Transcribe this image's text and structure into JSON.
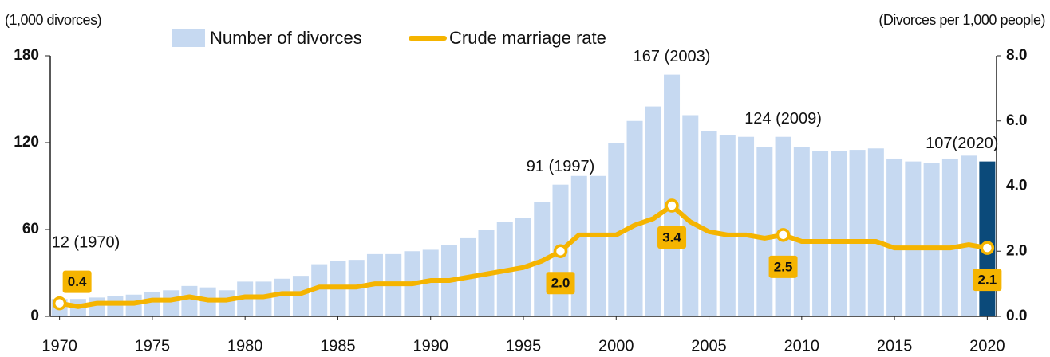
{
  "chart_data": {
    "type": "bar+line",
    "y_label": "(1,000 divorces)",
    "y2_label": "(Divorces per 1,000 people)",
    "x": [
      1970,
      1971,
      1972,
      1973,
      1974,
      1975,
      1976,
      1977,
      1978,
      1979,
      1980,
      1981,
      1982,
      1983,
      1984,
      1985,
      1986,
      1987,
      1988,
      1989,
      1990,
      1991,
      1992,
      1993,
      1994,
      1995,
      1996,
      1997,
      1998,
      1999,
      2000,
      2001,
      2002,
      2003,
      2004,
      2005,
      2006,
      2007,
      2008,
      2009,
      2010,
      2011,
      2012,
      2013,
      2014,
      2015,
      2016,
      2017,
      2018,
      2019,
      2020
    ],
    "xlim": [
      1969.5,
      2020.5
    ],
    "xticks": [
      1970,
      1975,
      1980,
      1985,
      1990,
      1995,
      2000,
      2005,
      2010,
      2015,
      2020
    ],
    "ylim": [
      0,
      180
    ],
    "yticks": [
      0,
      60,
      120,
      180
    ],
    "y2lim": [
      0,
      8
    ],
    "y2ticks": [
      {
        "value": 0,
        "label": "0.0"
      },
      {
        "value": 2,
        "label": "2.0"
      },
      {
        "value": 4,
        "label": "4.0"
      },
      {
        "value": 6,
        "label": "6.0"
      },
      {
        "value": 8,
        "label": "8.0"
      }
    ],
    "legend": "top",
    "series": [
      {
        "name": "Number of divorces",
        "type": "bar",
        "color": "#c6d9f1",
        "colors": [
          "#c6d9f1",
          "#c6d9f1",
          "#c6d9f1",
          "#c6d9f1",
          "#c6d9f1",
          "#c6d9f1",
          "#c6d9f1",
          "#c6d9f1",
          "#c6d9f1",
          "#c6d9f1",
          "#c6d9f1",
          "#c6d9f1",
          "#c6d9f1",
          "#c6d9f1",
          "#c6d9f1",
          "#c6d9f1",
          "#c6d9f1",
          "#c6d9f1",
          "#c6d9f1",
          "#c6d9f1",
          "#c6d9f1",
          "#c6d9f1",
          "#c6d9f1",
          "#c6d9f1",
          "#c6d9f1",
          "#c6d9f1",
          "#c6d9f1",
          "#c6d9f1",
          "#c6d9f1",
          "#c6d9f1",
          "#c6d9f1",
          "#c6d9f1",
          "#c6d9f1",
          "#c6d9f1",
          "#c6d9f1",
          "#c6d9f1",
          "#c6d9f1",
          "#c6d9f1",
          "#c6d9f1",
          "#c6d9f1",
          "#c6d9f1",
          "#c6d9f1",
          "#c6d9f1",
          "#c6d9f1",
          "#c6d9f1",
          "#c6d9f1",
          "#c6d9f1",
          "#c6d9f1",
          "#c6d9f1",
          "#c6d9f1",
          "#0b4a7a"
        ],
        "values": [
          12,
          12,
          13,
          14,
          15,
          17,
          18,
          21,
          20,
          18,
          24,
          24,
          26,
          28,
          36,
          38,
          39,
          43,
          43,
          45,
          46,
          49,
          54,
          60,
          65,
          68,
          79,
          91,
          97,
          97,
          120,
          135,
          145,
          167,
          139,
          128,
          125,
          124,
          117,
          124,
          117,
          114,
          114,
          115,
          116,
          109,
          107,
          106,
          109,
          111,
          107
        ],
        "value_labels": [
          "12 (1970)",
          null,
          null,
          null,
          null,
          null,
          null,
          null,
          null,
          null,
          null,
          null,
          null,
          null,
          null,
          null,
          null,
          null,
          null,
          null,
          null,
          null,
          null,
          null,
          null,
          null,
          null,
          "91 (1997)",
          null,
          null,
          null,
          null,
          null,
          "167 (2003)",
          null,
          null,
          null,
          null,
          null,
          "124 (2009)",
          null,
          null,
          null,
          null,
          null,
          null,
          null,
          null,
          null,
          null,
          "107(2020)"
        ]
      },
      {
        "name": "Crude marriage rate",
        "type": "line",
        "axis": "y2",
        "color": "#f5b400",
        "values": [
          0.4,
          0.3,
          0.4,
          0.4,
          0.4,
          0.5,
          0.5,
          0.6,
          0.5,
          0.5,
          0.6,
          0.6,
          0.7,
          0.7,
          0.9,
          0.9,
          0.9,
          1.0,
          1.0,
          1.0,
          1.1,
          1.1,
          1.2,
          1.3,
          1.4,
          1.5,
          1.7,
          2.0,
          2.5,
          2.5,
          2.5,
          2.8,
          3.0,
          3.4,
          2.9,
          2.6,
          2.5,
          2.5,
          2.4,
          2.5,
          2.3,
          2.3,
          2.3,
          2.3,
          2.3,
          2.1,
          2.1,
          2.1,
          2.1,
          2.2,
          2.1
        ],
        "value_labels": [
          "0.4",
          null,
          null,
          null,
          null,
          null,
          null,
          null,
          null,
          null,
          null,
          null,
          null,
          null,
          null,
          null,
          null,
          null,
          null,
          null,
          null,
          null,
          null,
          null,
          null,
          null,
          null,
          "2.0",
          null,
          null,
          null,
          null,
          null,
          "3.4",
          null,
          null,
          null,
          null,
          null,
          "2.5",
          null,
          null,
          null,
          null,
          null,
          null,
          null,
          null,
          null,
          null,
          "2.1"
        ]
      }
    ]
  }
}
